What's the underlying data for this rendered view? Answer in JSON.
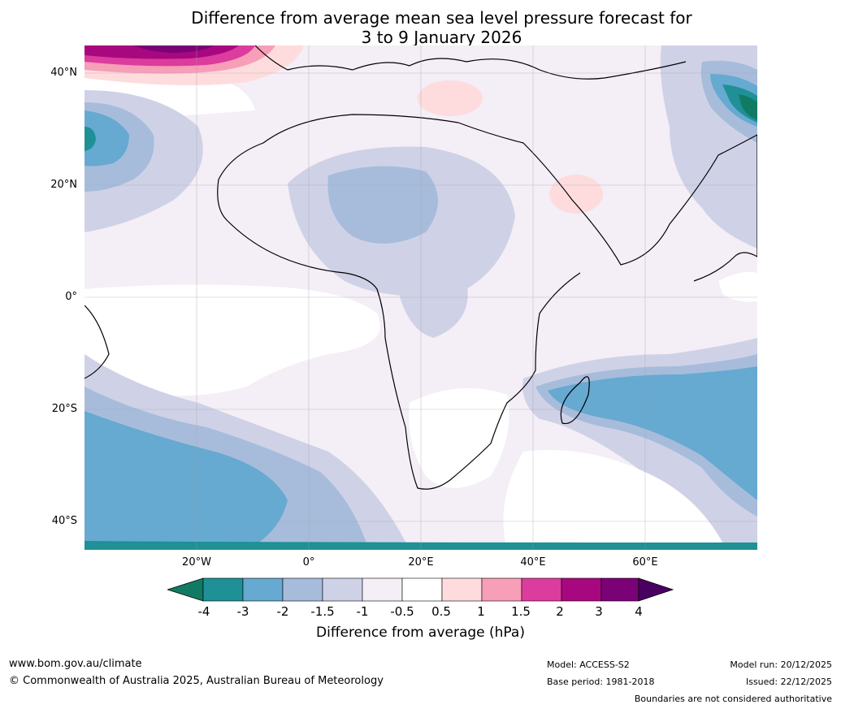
{
  "title": {
    "line1": "Difference from average mean sea level pressure forecast for",
    "line2": "3 to 9 January 2026"
  },
  "map": {
    "lat_labels": [
      "40°N",
      "20°N",
      "0°",
      "20°S",
      "40°S"
    ],
    "lon_labels": [
      "20°W",
      "0°",
      "20°E",
      "40°E",
      "60°E"
    ]
  },
  "colorbar": {
    "ticks": [
      "-4",
      "-3",
      "-2",
      "-1.5",
      "-1",
      "-0.5",
      "0.5",
      "1",
      "1.5",
      "2",
      "3",
      "4"
    ],
    "colors": [
      "#117a63",
      "#1e9096",
      "#66a9d1",
      "#a7bcdb",
      "#cfd2e6",
      "#f4eef6",
      "#ffffff",
      "#fedcdd",
      "#f79eb8",
      "#db3c9d",
      "#a8087f",
      "#7a0176",
      "#4a0060"
    ],
    "label": "Difference from average (hPa)"
  },
  "footer": {
    "website": "www.bom.gov.au/climate",
    "copyright": "© Commonwealth of Australia 2025, Australian Bureau of Meteorology",
    "model": "Model: ACCESS-S2",
    "base_period": "Base period: 1981-2018",
    "model_run": "Model run: 20/12/2025",
    "issued": "Issued: 22/12/2025",
    "disclaimer": "Boundaries are not considered authoritative"
  }
}
